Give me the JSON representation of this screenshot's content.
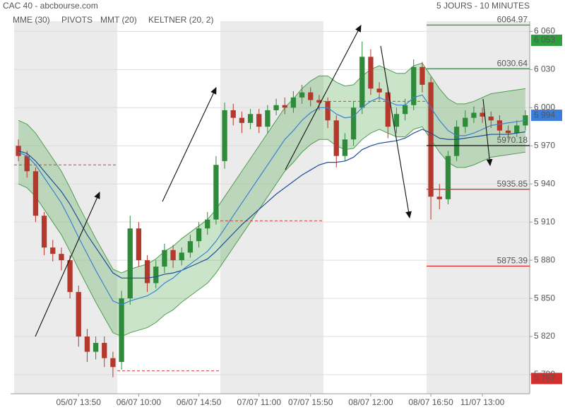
{
  "chart_data": {
    "type": "candlestick",
    "title": "CAC 40 - abcbourse.com",
    "subtitle": "5 JOURS - 10 MINUTES",
    "categories": [
      null,
      null,
      null,
      null,
      null,
      null,
      null,
      "05/07 13:50",
      null,
      null,
      null,
      null,
      null,
      null,
      "06/07 10:00",
      null,
      null,
      null,
      null,
      null,
      null,
      "06/07 14:50",
      null,
      null,
      null,
      null,
      null,
      null,
      "07/07 11:00",
      null,
      null,
      null,
      null,
      null,
      "07/07 15:50",
      null,
      null,
      null,
      null,
      null,
      null,
      "08/07 12:00",
      null,
      null,
      null,
      null,
      null,
      null,
      "08/07 16:50",
      null,
      null,
      null,
      null,
      null,
      "11/07 13:00",
      null,
      null,
      null,
      null,
      null
    ],
    "open": [
      5970,
      5962,
      5950,
      5915,
      5890,
      5885,
      5880,
      5855,
      5820,
      5808,
      5815,
      5803,
      5800,
      5850,
      5905,
      5880,
      5862,
      5875,
      5888,
      5880,
      5886,
      5895,
      5905,
      5912,
      5958,
      5998,
      5992,
      5988,
      5995,
      5985,
      5998,
      6002,
      6000,
      6008,
      6012,
      6006,
      6005,
      5990,
      5962,
      5975,
      6000,
      6040,
      6015,
      6012,
      5985,
      5995,
      6002,
      6032,
      6020,
      5930,
      5928,
      5962,
      5985,
      5992,
      5996,
      5993,
      5990,
      5982,
      5980,
      5986
    ],
    "high": [
      5975,
      5966,
      5953,
      5918,
      5896,
      5890,
      5884,
      5860,
      5826,
      5820,
      5820,
      5808,
      5856,
      5915,
      5910,
      5884,
      5880,
      5893,
      5892,
      5890,
      5900,
      5910,
      5918,
      5962,
      6004,
      6003,
      5997,
      5999,
      5999,
      6002,
      6007,
      6008,
      6013,
      6018,
      6016,
      6010,
      6008,
      5994,
      5980,
      6005,
      6052,
      6046,
      6020,
      6016,
      6000,
      6007,
      6038,
      6036,
      6024,
      5940,
      5966,
      5990,
      5998,
      6001,
      6000,
      5997,
      5994,
      5986,
      5990,
      5998
    ],
    "low": [
      5958,
      5945,
      5910,
      5884,
      5879,
      5872,
      5850,
      5812,
      5800,
      5802,
      5796,
      5788,
      5794,
      5845,
      5875,
      5855,
      5858,
      5870,
      5874,
      5876,
      5882,
      5890,
      5900,
      5908,
      5952,
      5986,
      5980,
      5983,
      5980,
      5980,
      5994,
      5995,
      5996,
      6003,
      6001,
      5998,
      5984,
      5953,
      5958,
      5970,
      5995,
      6010,
      6006,
      5976,
      5980,
      5990,
      5998,
      6012,
      5912,
      5920,
      5924,
      5958,
      5980,
      5988,
      5988,
      5984,
      5976,
      5975,
      5977,
      5982
    ],
    "close": [
      5962,
      5950,
      5915,
      5890,
      5885,
      5880,
      5855,
      5820,
      5808,
      5815,
      5803,
      5796,
      5850,
      5905,
      5880,
      5862,
      5875,
      5888,
      5880,
      5886,
      5895,
      5905,
      5912,
      5955,
      5998,
      5992,
      5988,
      5995,
      5985,
      5998,
      6002,
      6000,
      6008,
      6012,
      6006,
      6004,
      5990,
      5962,
      5975,
      6000,
      6040,
      6015,
      6012,
      5985,
      5995,
      6002,
      6032,
      6018,
      5930,
      5928,
      5962,
      5985,
      5992,
      5996,
      5993,
      5990,
      5982,
      5980,
      5986,
      5994
    ],
    "up_color": "#2e8b3a",
    "down_color": "#b5382c",
    "series": [
      {
        "name": "MME (30)",
        "color": "#1f4e9a",
        "values": [
          5966,
          5964,
          5958,
          5950,
          5942,
          5934,
          5924,
          5912,
          5900,
          5890,
          5880,
          5870,
          5866,
          5866,
          5866,
          5866,
          5867,
          5869,
          5870,
          5872,
          5875,
          5878,
          5881,
          5887,
          5894,
          5901,
          5908,
          5914,
          5920,
          5926,
          5932,
          5937,
          5942,
          5947,
          5951,
          5955,
          5957,
          5957,
          5958,
          5961,
          5967,
          5970,
          5972,
          5973,
          5974,
          5976,
          5980,
          5983,
          5980,
          5976,
          5975,
          5975,
          5976,
          5977,
          5978,
          5979,
          5979,
          5979,
          5980,
          5981
        ]
      },
      {
        "name": "MMT (20)",
        "color": "#3b82d0",
        "values": [
          5965,
          5962,
          5955,
          5945,
          5935,
          5925,
          5912,
          5898,
          5885,
          5872,
          5860,
          5848,
          5845,
          5848,
          5850,
          5852,
          5856,
          5862,
          5866,
          5872,
          5877,
          5882,
          5887,
          5895,
          5905,
          5915,
          5925,
          5935,
          5945,
          5955,
          5965,
          5975,
          5982,
          5990,
          5996,
          6000,
          6000,
          5995,
          5992,
          5993,
          6000,
          6005,
          6008,
          6005,
          6002,
          6002,
          6008,
          6010,
          6000,
          5990,
          5982,
          5978,
          5978,
          5980,
          5983,
          5986,
          5987,
          5988,
          5989,
          5990
        ]
      },
      {
        "name": "KELTNER (20, 2)",
        "color": "#4f9e4f",
        "upper": [
          5990,
          5987,
          5980,
          5970,
          5960,
          5950,
          5937,
          5923,
          5910,
          5897,
          5885,
          5873,
          5870,
          5873,
          5875,
          5877,
          5881,
          5887,
          5891,
          5897,
          5902,
          5907,
          5912,
          5920,
          5930,
          5940,
          5950,
          5960,
          5970,
          5980,
          5990,
          6000,
          6007,
          6015,
          6021,
          6025,
          6025,
          6020,
          6017,
          6018,
          6025,
          6030,
          6033,
          6030,
          6027,
          6027,
          6033,
          6035,
          6025,
          6015,
          6007,
          6003,
          6003,
          6005,
          6008,
          6011,
          6012,
          6013,
          6014,
          6015
        ],
        "lower": [
          5940,
          5937,
          5930,
          5920,
          5910,
          5900,
          5887,
          5873,
          5860,
          5847,
          5835,
          5823,
          5820,
          5823,
          5825,
          5827,
          5831,
          5837,
          5841,
          5847,
          5852,
          5857,
          5862,
          5870,
          5880,
          5890,
          5900,
          5910,
          5920,
          5930,
          5940,
          5950,
          5957,
          5965,
          5971,
          5975,
          5975,
          5970,
          5967,
          5968,
          5975,
          5980,
          5983,
          5980,
          5977,
          5977,
          5983,
          5985,
          5975,
          5965,
          5957,
          5953,
          5953,
          5955,
          5958,
          5961,
          5962,
          5963,
          5964,
          5965
        ]
      }
    ],
    "pivots": {
      "name": "PIVOTS",
      "color": "#666666",
      "levels": [
        {
          "value": 6064.97,
          "color": "#2e9e3e"
        },
        {
          "value": 6030.64,
          "color": "#2e9e3e"
        },
        {
          "value": 5970.18,
          "color": "#222222"
        },
        {
          "value": 5935.85,
          "color": "#e03030"
        },
        {
          "value": 5875.39,
          "color": "#e03030"
        }
      ],
      "previous": [
        {
          "value": 5955,
          "color": "#d04040"
        },
        {
          "value": 5793,
          "color": "#d04040"
        },
        {
          "value": 5911,
          "color": "#d04040"
        },
        {
          "value": 6005,
          "color": "#d04040"
        }
      ]
    },
    "tags": [
      {
        "value": 6053,
        "label": "6 053",
        "color": "#2e9e3e"
      },
      {
        "value": 5994,
        "label": "5 994",
        "color": "#3b7dd8"
      },
      {
        "value": 5787,
        "label": "5 787",
        "color": "#d42f2f"
      }
    ],
    "ylim": [
      5775,
      6068
    ],
    "yticks": [
      {
        "value": 6060,
        "label": "6 060"
      },
      {
        "value": 6030,
        "label": "6 030"
      },
      {
        "value": 6000,
        "label": "6 000"
      },
      {
        "value": 5970,
        "label": "5 970"
      },
      {
        "value": 5940,
        "label": "5 940"
      },
      {
        "value": 5910,
        "label": "5 910"
      },
      {
        "value": 5880,
        "label": "5 880"
      },
      {
        "value": 5850,
        "label": "5 850"
      },
      {
        "value": 5820,
        "label": "5 820"
      },
      {
        "value": 5790,
        "label": "5 790"
      }
    ],
    "grid": true
  }
}
